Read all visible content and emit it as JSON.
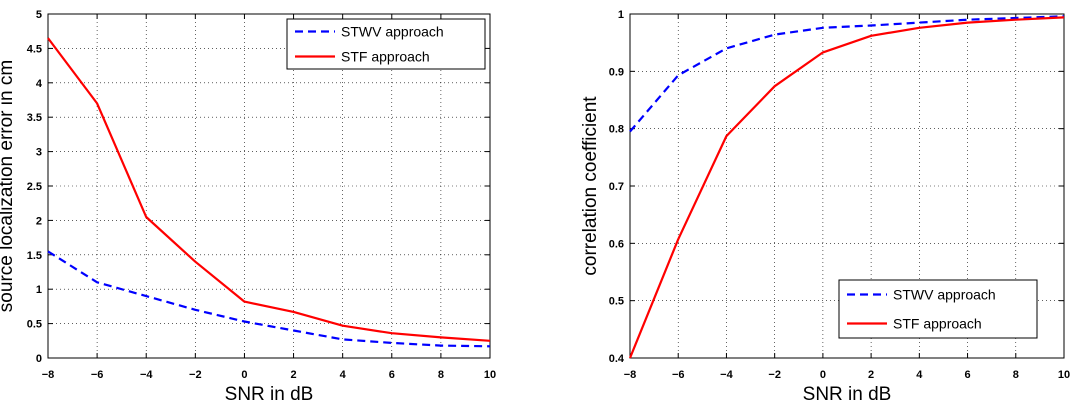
{
  "chart_data": [
    {
      "type": "line",
      "xlabel": "SNR in dB",
      "ylabel": "source localization error in cm",
      "xlim": [
        -8,
        10
      ],
      "ylim": [
        0,
        5
      ],
      "xticks": [
        -8,
        -6,
        -4,
        -2,
        0,
        2,
        4,
        6,
        8,
        10
      ],
      "yticks": [
        0,
        0.5,
        1,
        1.5,
        2,
        2.5,
        3,
        3.5,
        4,
        4.5,
        5
      ],
      "xtick_labels": [
        "−8",
        "−6",
        "−4",
        "−2",
        "0",
        "2",
        "4",
        "6",
        "8",
        "10"
      ],
      "ytick_labels": [
        "0",
        "0.5",
        "1",
        "1.5",
        "2",
        "2.5",
        "3",
        "3.5",
        "4",
        "4.5",
        "5"
      ],
      "grid": true,
      "legend_position": "top-right",
      "x": [
        -8,
        -6,
        -4,
        -2,
        0,
        2,
        4,
        6,
        8,
        10
      ],
      "series": [
        {
          "name": "STWV approach",
          "color": "#0000ff",
          "style": "dashed",
          "values": [
            1.55,
            1.1,
            0.9,
            0.7,
            0.53,
            0.4,
            0.27,
            0.22,
            0.18,
            0.17
          ]
        },
        {
          "name": "STF approach",
          "color": "#ff0000",
          "style": "solid",
          "values": [
            4.65,
            3.7,
            2.05,
            1.4,
            0.82,
            0.67,
            0.47,
            0.36,
            0.3,
            0.25
          ]
        }
      ]
    },
    {
      "type": "line",
      "xlabel": "SNR in dB",
      "ylabel": "correlation coefficient",
      "xlim": [
        -8,
        10
      ],
      "ylim": [
        0.4,
        1
      ],
      "xticks": [
        -8,
        -6,
        -4,
        -2,
        0,
        2,
        4,
        6,
        8,
        10
      ],
      "yticks": [
        0.4,
        0.5,
        0.6,
        0.7,
        0.8,
        0.9,
        1
      ],
      "xtick_labels": [
        "−8",
        "−6",
        "−4",
        "−2",
        "0",
        "2",
        "4",
        "6",
        "8",
        "10"
      ],
      "ytick_labels": [
        "0.4",
        "0.5",
        "0.6",
        "0.7",
        "0.8",
        "0.9",
        "1"
      ],
      "grid": true,
      "legend_position": "bottom-right",
      "x": [
        -8,
        -6,
        -4,
        -2,
        0,
        2,
        4,
        6,
        8,
        10
      ],
      "series": [
        {
          "name": "STWV approach",
          "color": "#0000ff",
          "style": "dashed",
          "values": [
            0.795,
            0.893,
            0.94,
            0.964,
            0.976,
            0.98,
            0.985,
            0.99,
            0.993,
            0.996
          ]
        },
        {
          "name": "STF approach",
          "color": "#ff0000",
          "style": "solid",
          "values": [
            0.4,
            0.607,
            0.787,
            0.874,
            0.933,
            0.962,
            0.976,
            0.985,
            0.99,
            0.994
          ]
        }
      ]
    }
  ]
}
